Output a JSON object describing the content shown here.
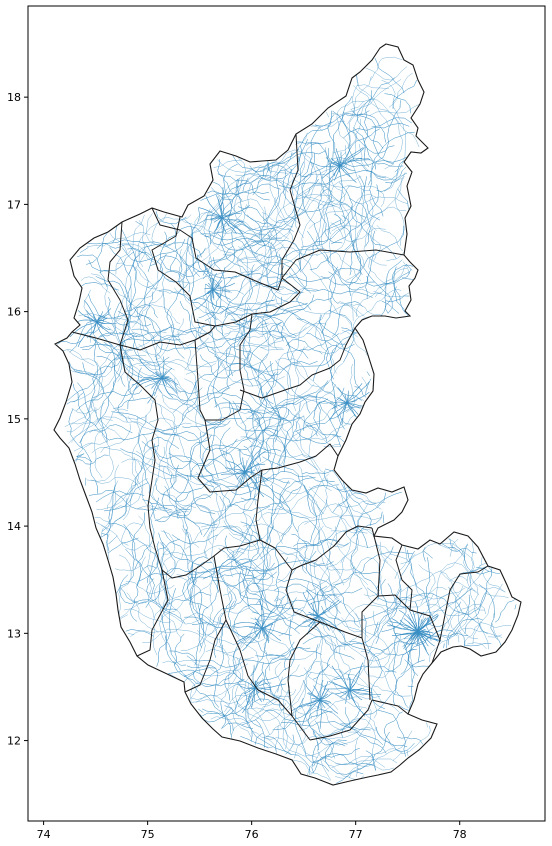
{
  "map": {
    "type": "choropleth-outline-with-road-network",
    "x_ticks": [
      "74",
      "75",
      "76",
      "77",
      "78"
    ],
    "y_ticks": [
      "12",
      "13",
      "14",
      "15",
      "16",
      "17",
      "18"
    ],
    "x_tick_values": [
      74,
      75,
      76,
      77,
      78
    ],
    "y_tick_values": [
      12,
      13,
      14,
      15,
      16,
      17,
      18
    ],
    "xlim": [
      73.85,
      78.82
    ],
    "ylim": [
      11.25,
      18.85
    ],
    "grid": false,
    "colors": {
      "boundary": "#1a1a1a",
      "roads": "#3a8fc4",
      "background": "#ffffff",
      "axes": "#000000"
    }
  }
}
